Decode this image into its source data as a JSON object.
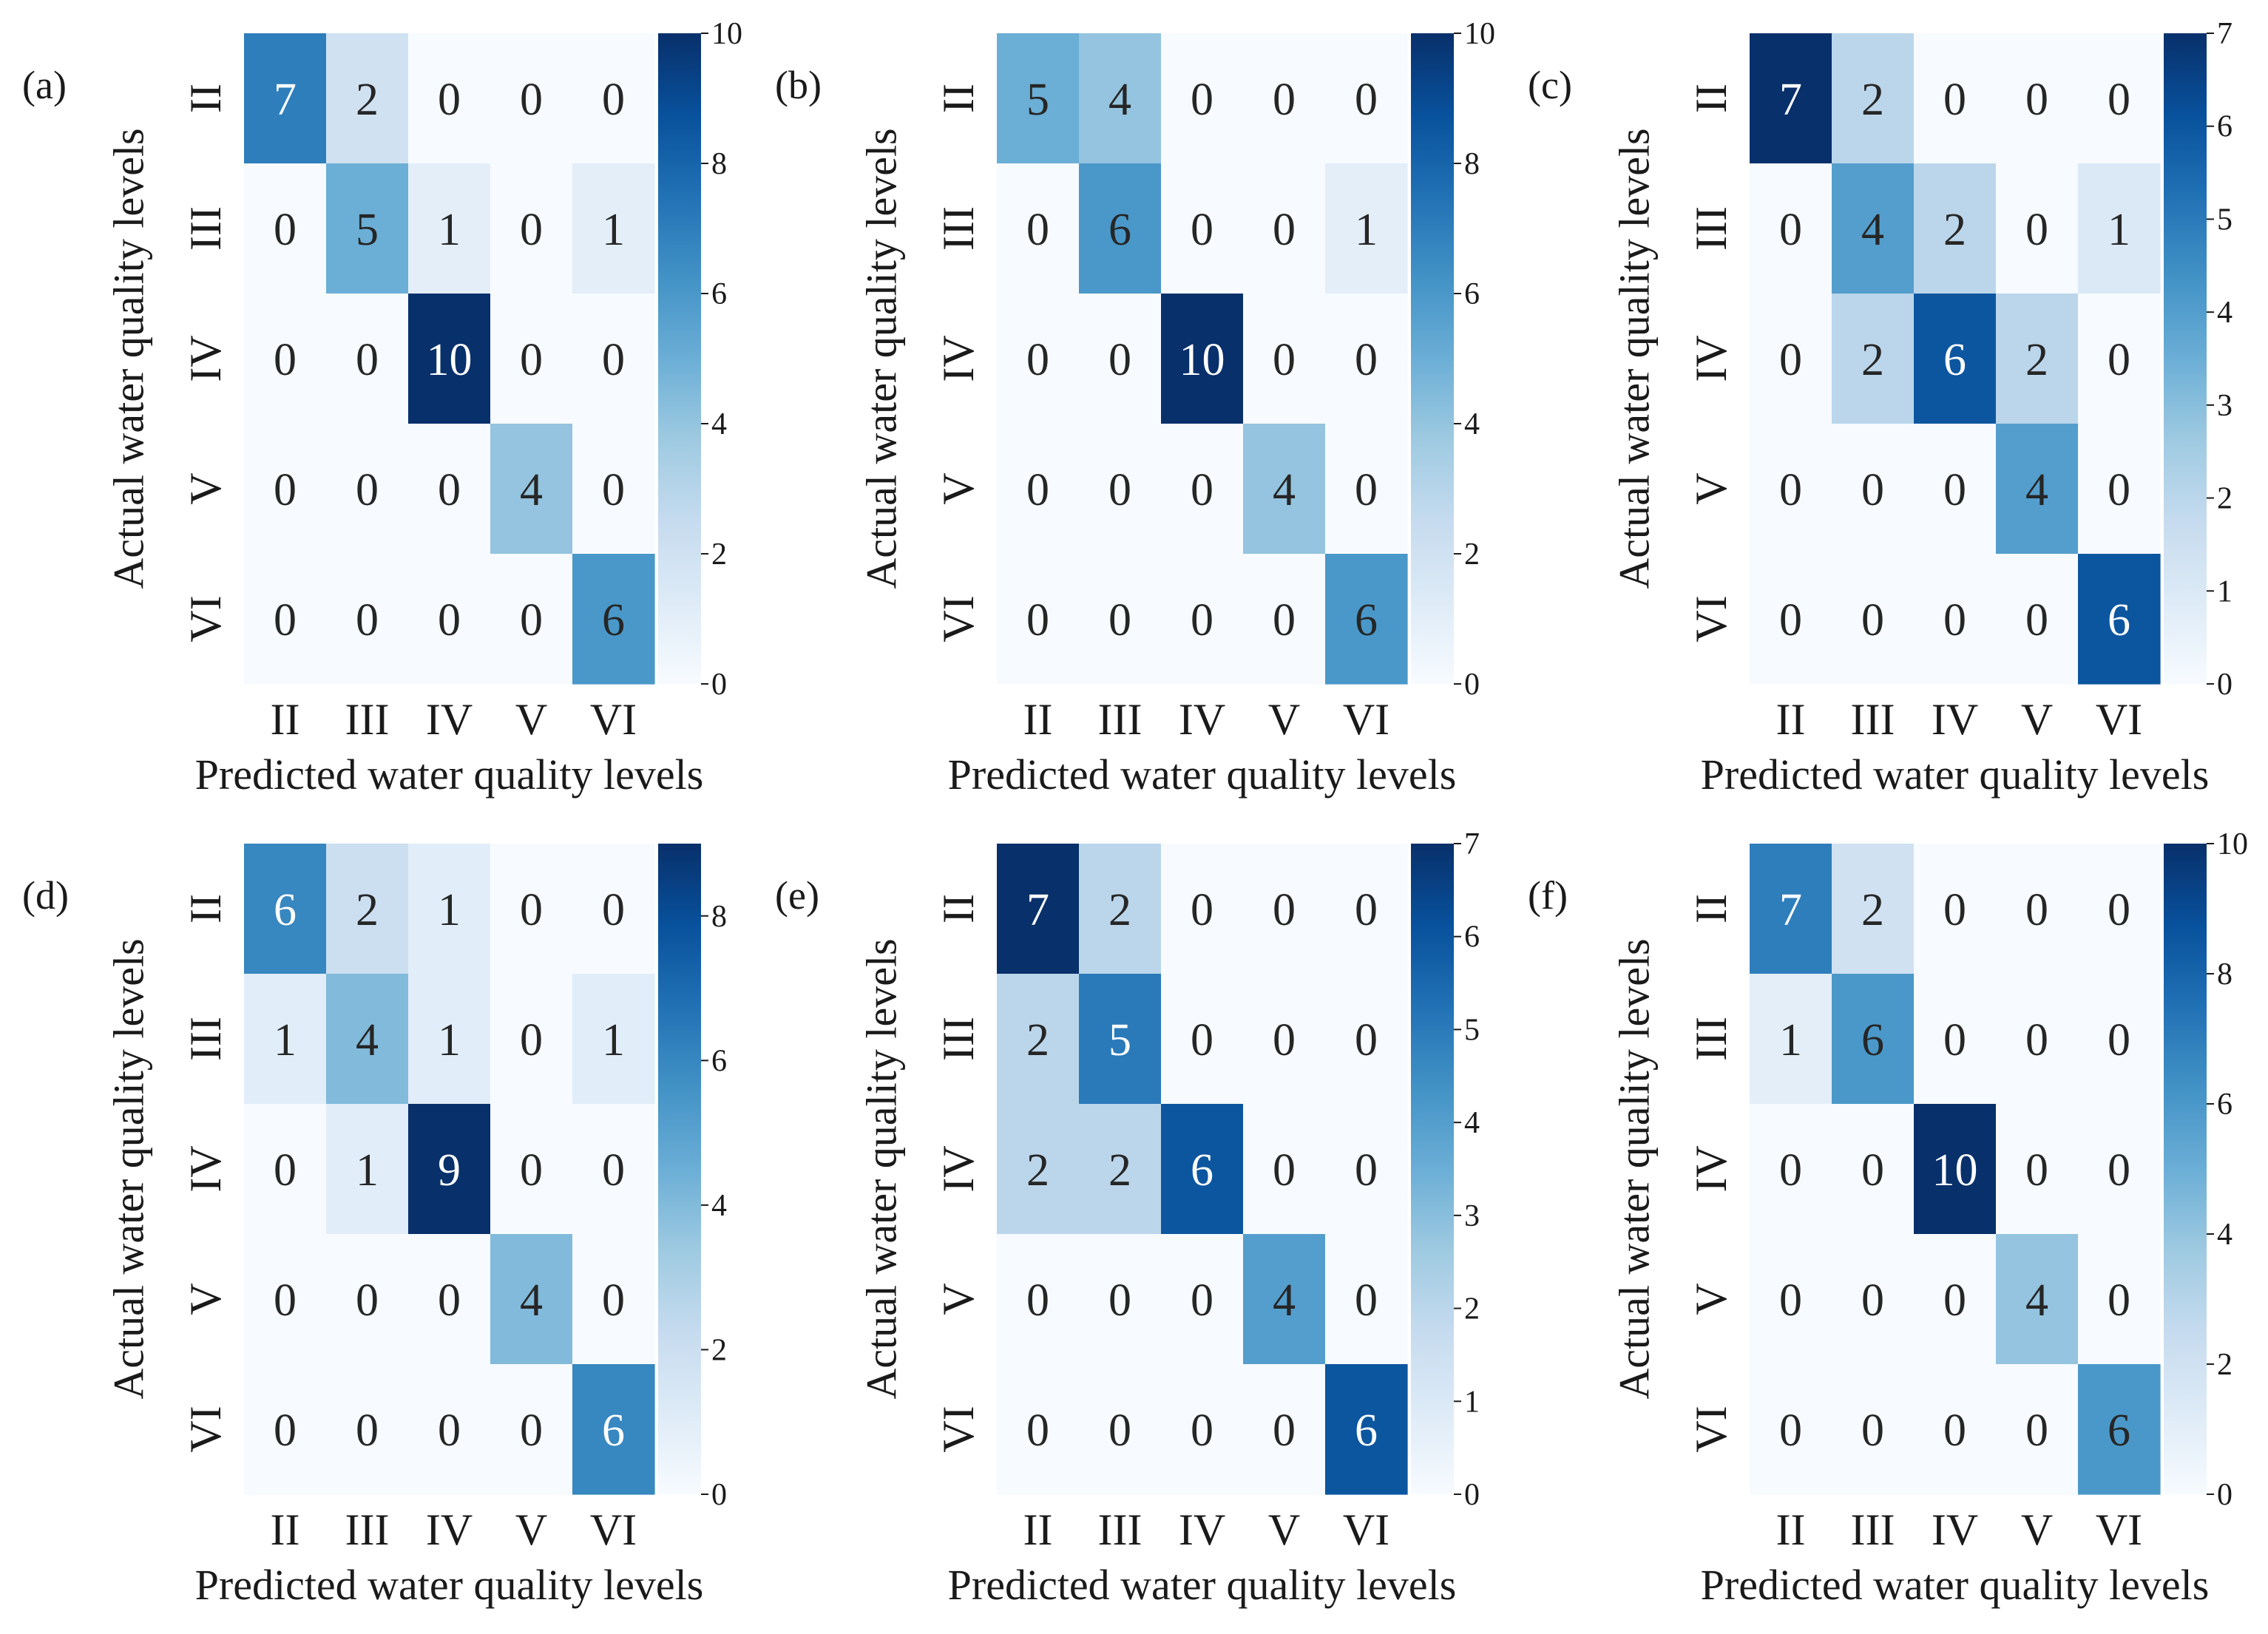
{
  "figure": {
    "xlabel": "Predicted water quality levels",
    "ylabel": "Actual water quality levels"
  },
  "chart_data": [
    {
      "type": "heatmap",
      "panel_label": "(a)",
      "xlabel": "Predicted water quality levels",
      "ylabel": "Actual water quality levels",
      "x_categories": [
        "II",
        "III",
        "IV",
        "V",
        "VI"
      ],
      "y_categories": [
        "II",
        "III",
        "IV",
        "V",
        "VI"
      ],
      "values": [
        [
          7,
          2,
          0,
          0,
          0
        ],
        [
          0,
          5,
          1,
          0,
          1
        ],
        [
          0,
          0,
          10,
          0,
          0
        ],
        [
          0,
          0,
          0,
          4,
          0
        ],
        [
          0,
          0,
          0,
          0,
          6
        ]
      ],
      "colorbar": {
        "min": 0,
        "max": 10,
        "ticks": [
          "0",
          "2",
          "4",
          "6",
          "8",
          "10"
        ]
      },
      "colormap": "Blues"
    },
    {
      "type": "heatmap",
      "panel_label": "(b)",
      "xlabel": "Predicted water quality levels",
      "ylabel": "Actual water quality levels",
      "x_categories": [
        "II",
        "III",
        "IV",
        "V",
        "VI"
      ],
      "y_categories": [
        "II",
        "III",
        "IV",
        "V",
        "VI"
      ],
      "values": [
        [
          5,
          4,
          0,
          0,
          0
        ],
        [
          0,
          6,
          0,
          0,
          1
        ],
        [
          0,
          0,
          10,
          0,
          0
        ],
        [
          0,
          0,
          0,
          4,
          0
        ],
        [
          0,
          0,
          0,
          0,
          6
        ]
      ],
      "colorbar": {
        "min": 0,
        "max": 10,
        "ticks": [
          "0",
          "2",
          "4",
          "6",
          "8",
          "10"
        ]
      },
      "colormap": "Blues"
    },
    {
      "type": "heatmap",
      "panel_label": "(c)",
      "xlabel": "Predicted water quality levels",
      "ylabel": "Actual water quality levels",
      "x_categories": [
        "II",
        "III",
        "IV",
        "V",
        "VI"
      ],
      "y_categories": [
        "II",
        "III",
        "IV",
        "V",
        "VI"
      ],
      "values": [
        [
          7,
          2,
          0,
          0,
          0
        ],
        [
          0,
          4,
          2,
          0,
          1
        ],
        [
          0,
          2,
          6,
          2,
          0
        ],
        [
          0,
          0,
          0,
          4,
          0
        ],
        [
          0,
          0,
          0,
          0,
          6
        ]
      ],
      "colorbar": {
        "min": 0,
        "max": 7,
        "ticks": [
          "0",
          "1",
          "2",
          "3",
          "4",
          "5",
          "6",
          "7"
        ]
      },
      "colormap": "Blues"
    },
    {
      "type": "heatmap",
      "panel_label": "(d)",
      "xlabel": "Predicted water quality levels",
      "ylabel": "Actual water quality levels",
      "x_categories": [
        "II",
        "III",
        "IV",
        "V",
        "VI"
      ],
      "y_categories": [
        "II",
        "III",
        "IV",
        "V",
        "VI"
      ],
      "values": [
        [
          6,
          2,
          1,
          0,
          0
        ],
        [
          1,
          4,
          1,
          0,
          1
        ],
        [
          0,
          1,
          9,
          0,
          0
        ],
        [
          0,
          0,
          0,
          4,
          0
        ],
        [
          0,
          0,
          0,
          0,
          6
        ]
      ],
      "colorbar": {
        "min": 0,
        "max": 9,
        "ticks": [
          "0",
          "2",
          "4",
          "6",
          "8"
        ]
      },
      "colormap": "Blues"
    },
    {
      "type": "heatmap",
      "panel_label": "(e)",
      "xlabel": "Predicted water quality levels",
      "ylabel": "Actual water quality levels",
      "x_categories": [
        "II",
        "III",
        "IV",
        "V",
        "VI"
      ],
      "y_categories": [
        "II",
        "III",
        "IV",
        "V",
        "VI"
      ],
      "values": [
        [
          7,
          2,
          0,
          0,
          0
        ],
        [
          2,
          5,
          0,
          0,
          0
        ],
        [
          2,
          2,
          6,
          0,
          0
        ],
        [
          0,
          0,
          0,
          4,
          0
        ],
        [
          0,
          0,
          0,
          0,
          6
        ]
      ],
      "colorbar": {
        "min": 0,
        "max": 7,
        "ticks": [
          "0",
          "1",
          "2",
          "3",
          "4",
          "5",
          "6",
          "7"
        ]
      },
      "colormap": "Blues"
    },
    {
      "type": "heatmap",
      "panel_label": "(f)",
      "xlabel": "Predicted water quality levels",
      "ylabel": "Actual water quality levels",
      "x_categories": [
        "II",
        "III",
        "IV",
        "V",
        "VI"
      ],
      "y_categories": [
        "II",
        "III",
        "IV",
        "V",
        "VI"
      ],
      "values": [
        [
          7,
          2,
          0,
          0,
          0
        ],
        [
          1,
          6,
          0,
          0,
          0
        ],
        [
          0,
          0,
          10,
          0,
          0
        ],
        [
          0,
          0,
          0,
          4,
          0
        ],
        [
          0,
          0,
          0,
          0,
          6
        ]
      ],
      "colorbar": {
        "min": 0,
        "max": 10,
        "ticks": [
          "0",
          "2",
          "4",
          "6",
          "8",
          "10"
        ]
      },
      "colormap": "Blues"
    }
  ]
}
